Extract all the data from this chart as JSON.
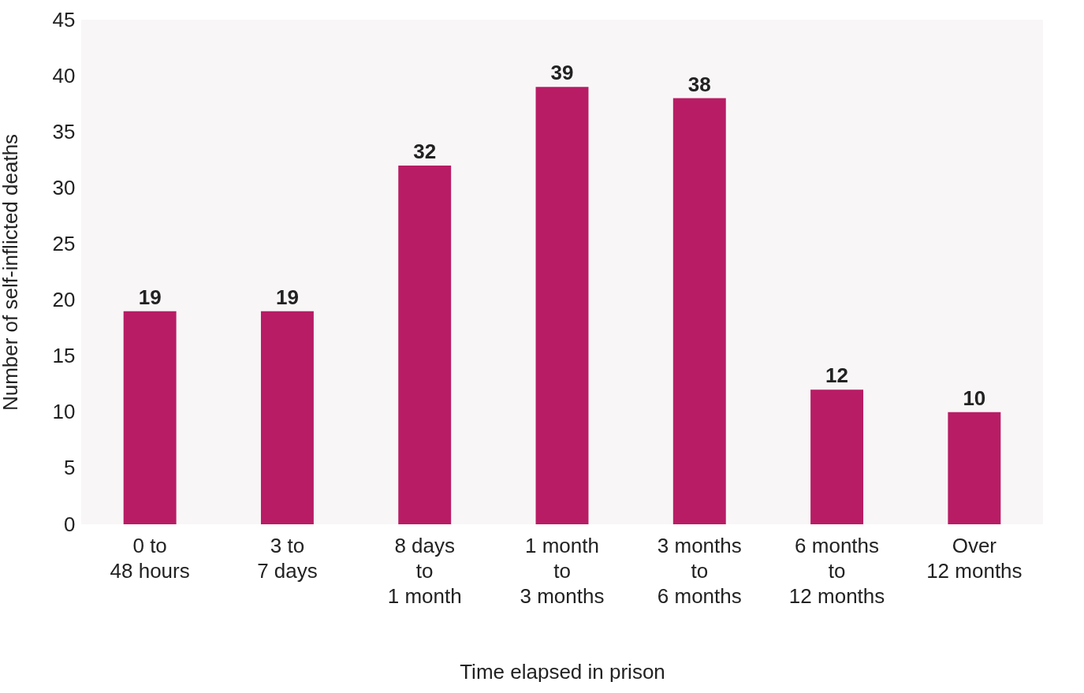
{
  "chart_data": {
    "type": "bar",
    "xlabel": "Time elapsed in prison",
    "ylabel": "Number of self-inflicted deaths",
    "categories": [
      "0 to\n48 hours",
      "3 to\n7 days",
      "8 days\nto\n1 month",
      "1 month\nto\n3 months",
      "3 months\nto\n6 months",
      "6 months\nto\n12 months",
      "Over\n12 months"
    ],
    "values": [
      19,
      19,
      32,
      39,
      38,
      12,
      10
    ],
    "color": "#b81c65",
    "data_labels": true,
    "ylim": [
      0,
      45
    ],
    "yticks": [
      0,
      5,
      10,
      15,
      20,
      25,
      30,
      35,
      40,
      45
    ],
    "grid": false
  }
}
